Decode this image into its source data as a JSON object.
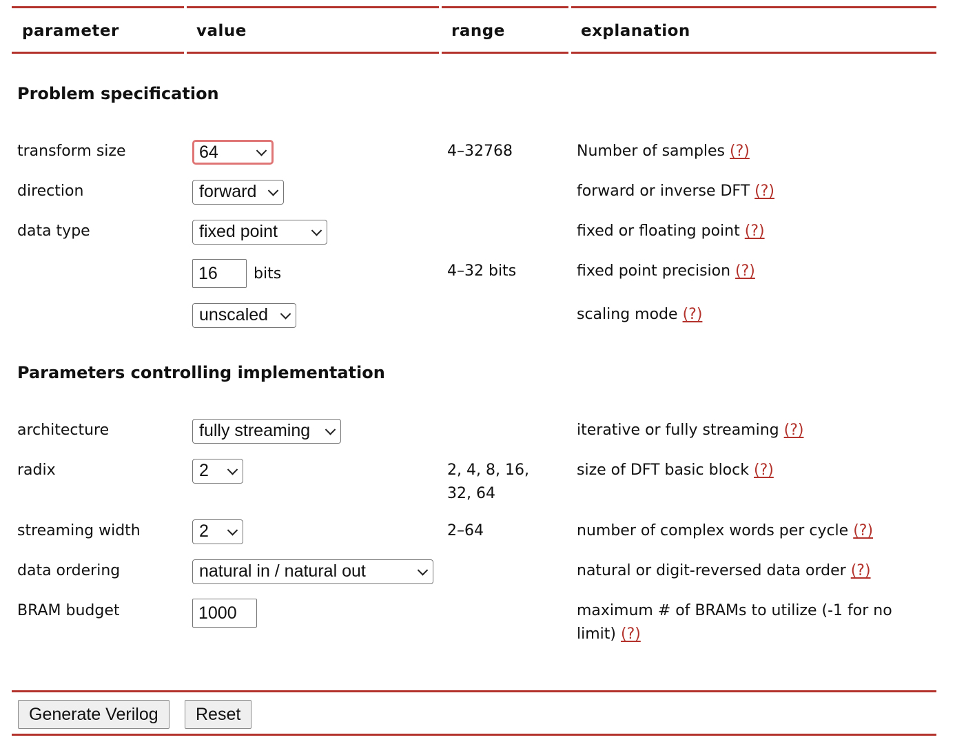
{
  "header": {
    "parameter": "parameter",
    "value": "value",
    "range": "range",
    "explanation": "explanation"
  },
  "sections": {
    "problem": "Problem specification",
    "implementation": "Parameters controlling implementation"
  },
  "help_label": "(?)",
  "rows": {
    "transform_size": {
      "label": "transform size",
      "value": "64",
      "range": "4–32768",
      "explanation": "Number of samples"
    },
    "direction": {
      "label": "direction",
      "value": "forward",
      "explanation": "forward or inverse DFT"
    },
    "data_type": {
      "label": "data type",
      "value": "fixed point",
      "explanation": "fixed or floating point"
    },
    "precision": {
      "value": "16",
      "unit": "bits",
      "range": "4–32 bits",
      "explanation": "fixed point precision"
    },
    "scaling": {
      "value": "unscaled",
      "explanation": "scaling mode"
    },
    "architecture": {
      "label": "architecture",
      "value": "fully streaming",
      "explanation": "iterative or fully streaming"
    },
    "radix": {
      "label": "radix",
      "value": "2",
      "range_line1": "2, 4, 8, 16,",
      "range_line2": "32, 64",
      "explanation": "size of DFT basic block"
    },
    "streaming_width": {
      "label": "streaming width",
      "value": "2",
      "range": "2–64",
      "explanation": "number of complex words per cycle"
    },
    "data_ordering": {
      "label": "data ordering",
      "value": "natural in / natural out",
      "explanation": "natural or digit-reversed data order"
    },
    "bram_budget": {
      "label": "BRAM budget",
      "value": "1000",
      "explanation_line1": "maximum # of BRAMs to utilize (-1 for no",
      "explanation_line2": "limit)"
    }
  },
  "buttons": {
    "generate": "Generate Verilog",
    "reset": "Reset"
  },
  "colors": {
    "accent": "#b3322b",
    "focus_ring": "#e07575"
  }
}
